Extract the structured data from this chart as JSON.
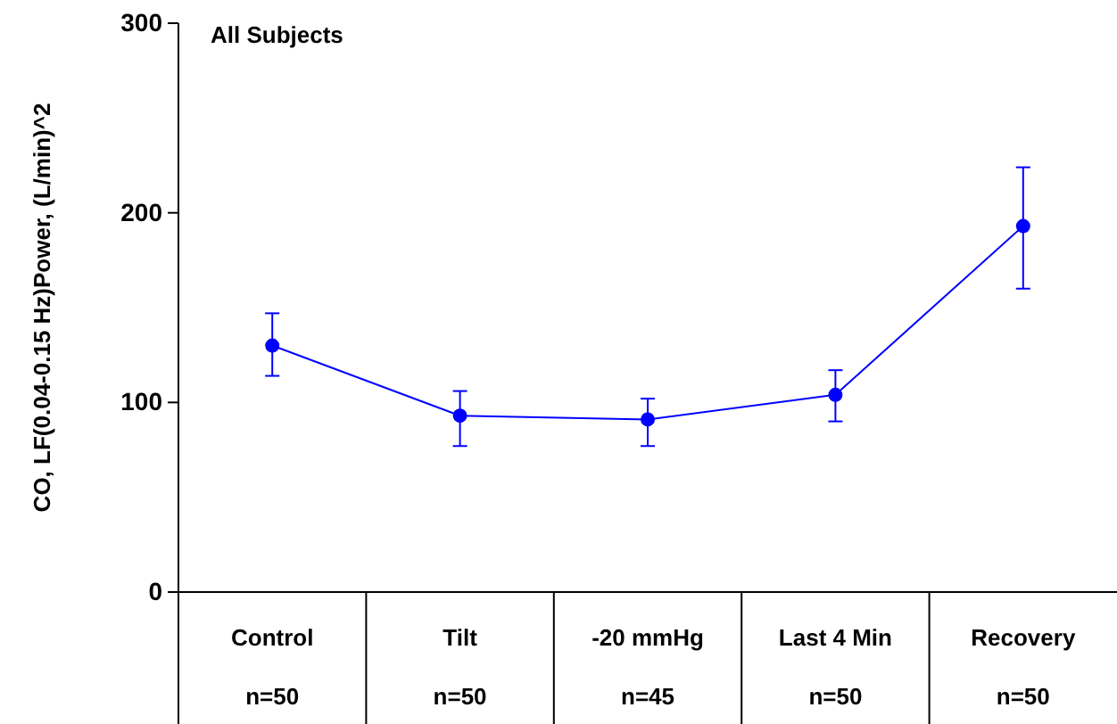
{
  "chart_data": {
    "type": "line",
    "title": "All Subjects",
    "ylabel": "CO, LF(0.04-0.15 Hz)Power, (L/min)^2",
    "categories": [
      "Control",
      "Tilt",
      "-20 mmHg",
      "Last 4 Min",
      "Recovery"
    ],
    "series": [
      {
        "color": "#0000ff",
        "values": [
          130,
          93,
          91,
          104,
          193
        ],
        "errors": [
          [
            114,
            147
          ],
          [
            77,
            106
          ],
          [
            77,
            102
          ],
          [
            90,
            117
          ],
          [
            160,
            224
          ]
        ]
      }
    ],
    "ylim": [
      0,
      300
    ],
    "yticks": [
      0,
      100,
      200,
      300
    ],
    "grid": false,
    "marker": "circle",
    "line_style": "solid",
    "annotations": [
      "n=50",
      "n=50",
      "n=45",
      "n=50",
      "n=50"
    ]
  }
}
